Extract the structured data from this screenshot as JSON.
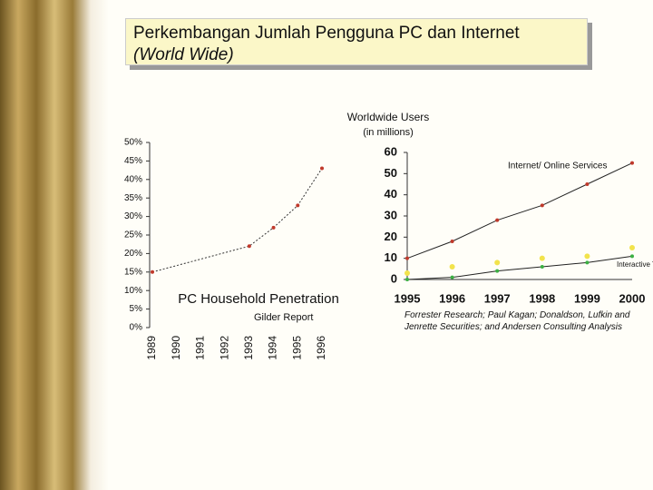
{
  "header": {
    "title": "Perkembangan Jumlah Pengguna PC dan Internet",
    "subtitle": "(World Wide)"
  },
  "chart_data": [
    {
      "type": "line",
      "title": "PC Household Penetration",
      "source": "Gilder Report",
      "x": [
        1989,
        1993,
        1994,
        1995,
        1996
      ],
      "values": [
        15,
        22,
        27,
        33,
        43
      ],
      "color": "#c0392b",
      "xlim": [
        1989,
        1996
      ],
      "xticks": [
        1989,
        1990,
        1991,
        1992,
        1993,
        1994,
        1995,
        1996
      ],
      "ylim": [
        0,
        50
      ],
      "yticks": [
        {
          "value": 0,
          "label": "0%"
        },
        {
          "value": 5,
          "label": "5%"
        },
        {
          "value": 10,
          "label": "10%"
        },
        {
          "value": 15,
          "label": "15%"
        },
        {
          "value": 20,
          "label": "20%"
        },
        {
          "value": 25,
          "label": "25%"
        },
        {
          "value": 30,
          "label": "30%"
        },
        {
          "value": 35,
          "label": "35%"
        },
        {
          "value": 40,
          "label": "40%"
        },
        {
          "value": 45,
          "label": "45%"
        },
        {
          "value": 50,
          "label": "50%"
        }
      ]
    },
    {
      "type": "line",
      "title": "Worldwide Users",
      "subtitle": "(in millions)",
      "source": "Forrester Research; Paul Kagan; Donaldson, Lufkin and Jenrette Securities; and Andersen Consulting Analysis",
      "categories": [
        "1995",
        "1996",
        "1997",
        "1998",
        "1999",
        "2000"
      ],
      "series": [
        {
          "name": "Internet/ Online Services",
          "color": "#c0392b",
          "values": [
            10,
            18,
            28,
            35,
            45,
            55
          ]
        },
        {
          "color": "#f2e34c",
          "values": [
            3,
            6,
            8,
            10,
            11,
            15
          ]
        },
        {
          "name": "Interactive Television",
          "color": "#3cb043",
          "values": [
            0,
            1,
            4,
            6,
            8,
            11
          ]
        }
      ],
      "ylim": [
        0,
        60
      ],
      "yticks": [
        0,
        10,
        20,
        30,
        40,
        50,
        60
      ]
    }
  ]
}
